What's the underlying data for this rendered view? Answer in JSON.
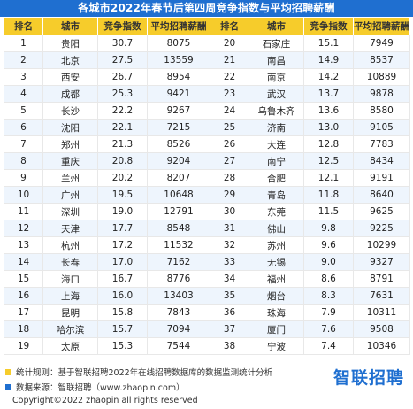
{
  "title": "各城市2022年春节后第四周竞争指数与平均招聘薪酬",
  "columns": [
    "排名",
    "城市",
    "竞争指数",
    "平均招聘薪酬",
    "排名",
    "城市",
    "竞争指数",
    "平均招聘薪酬"
  ],
  "rows": [
    [
      "1",
      "贵阳",
      "30.7",
      "8075",
      "20",
      "石家庄",
      "15.1",
      "7949"
    ],
    [
      "2",
      "北京",
      "27.5",
      "13559",
      "21",
      "南昌",
      "14.9",
      "8537"
    ],
    [
      "3",
      "西安",
      "26.7",
      "8954",
      "22",
      "南京",
      "14.2",
      "10889"
    ],
    [
      "4",
      "成都",
      "25.3",
      "9421",
      "23",
      "武汉",
      "13.7",
      "9878"
    ],
    [
      "5",
      "长沙",
      "22.2",
      "9267",
      "24",
      "乌鲁木齐",
      "13.6",
      "8580"
    ],
    [
      "6",
      "沈阳",
      "22.1",
      "7215",
      "25",
      "济南",
      "13.0",
      "9105"
    ],
    [
      "7",
      "郑州",
      "21.3",
      "8526",
      "26",
      "大连",
      "12.8",
      "7783"
    ],
    [
      "8",
      "重庆",
      "20.8",
      "9204",
      "27",
      "南宁",
      "12.5",
      "8434"
    ],
    [
      "9",
      "兰州",
      "20.2",
      "8207",
      "28",
      "合肥",
      "12.1",
      "9191"
    ],
    [
      "10",
      "广州",
      "19.5",
      "10648",
      "29",
      "青岛",
      "11.8",
      "8640"
    ],
    [
      "11",
      "深圳",
      "19.0",
      "12791",
      "30",
      "东莞",
      "11.5",
      "9625"
    ],
    [
      "12",
      "天津",
      "17.7",
      "8548",
      "31",
      "佛山",
      "9.8",
      "9225"
    ],
    [
      "13",
      "杭州",
      "17.2",
      "11532",
      "32",
      "苏州",
      "9.6",
      "10299"
    ],
    [
      "14",
      "长春",
      "17.0",
      "7162",
      "33",
      "无锡",
      "9.0",
      "9327"
    ],
    [
      "15",
      "海口",
      "16.7",
      "8776",
      "34",
      "福州",
      "8.6",
      "8791"
    ],
    [
      "16",
      "上海",
      "16.0",
      "13403",
      "35",
      "烟台",
      "8.3",
      "7631"
    ],
    [
      "17",
      "昆明",
      "15.8",
      "7843",
      "36",
      "珠海",
      "7.9",
      "10311"
    ],
    [
      "18",
      "哈尔滨",
      "15.7",
      "7094",
      "37",
      "厦门",
      "7.6",
      "9508"
    ],
    [
      "19",
      "太原",
      "15.3",
      "7544",
      "38",
      "宁波",
      "7.4",
      "10346"
    ]
  ],
  "footer": {
    "note1": "统计规则：基于智联招聘2022年在线招聘数据库的数据监测统计分析",
    "note2": "数据来源：智联招聘（www.zhaopin.com）",
    "copyright": "Copyright©2022 zhaopin all rights reserved",
    "logo": "智联招聘"
  },
  "colors": {
    "header_blue": "#1f6fd0",
    "header_yellow": "#f6cc2b",
    "stripe": "#eef5fd"
  }
}
